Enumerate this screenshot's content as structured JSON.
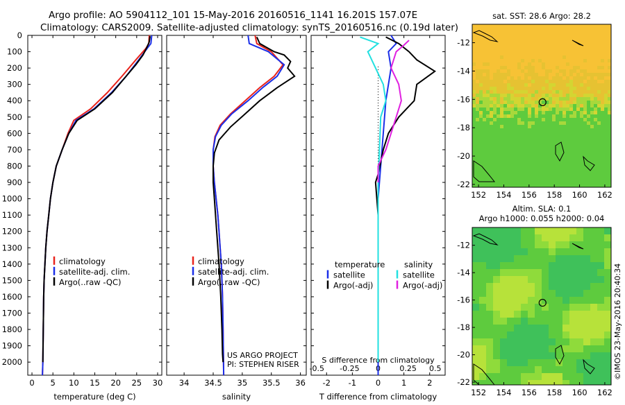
{
  "header": {
    "line1": "Argo profile: AO 5904112_101 15-May-2016 20160516_1141 16.201S 157.07E",
    "line2": "Climatology: CARS2009. Satellite-adjusted climatology: synTS_20160516.nc (0.19d later)"
  },
  "footer_stamp": "©IMOS 23-May-2016 20:40:34",
  "project": {
    "line1": "US ARGO PROJECT",
    "line2": "PI: STEPHEN RISER"
  },
  "colors": {
    "climatology": "#e8231c",
    "satellite": "#1a2ee8",
    "argo": "#000000",
    "sat_s": "#22e0e0",
    "argo_s": "#e020e0"
  },
  "chart_data": [
    {
      "id": "temperature",
      "type": "line",
      "xlabel": "temperature (deg C)",
      "ylabel": "",
      "xlim": [
        -1,
        31
      ],
      "ylim": [
        2080,
        0
      ],
      "xticks": [
        0,
        5,
        10,
        15,
        20,
        25,
        30
      ],
      "yticks": [
        0,
        100,
        200,
        300,
        400,
        500,
        600,
        700,
        800,
        900,
        1000,
        1100,
        1200,
        1300,
        1400,
        1500,
        1600,
        1700,
        1800,
        1900,
        2000
      ],
      "legend": [
        "climatology",
        "satellite-adj. clim.",
        "Argo(..raw -QC)"
      ],
      "series": [
        {
          "name": "climatology",
          "color": "climatology",
          "x": [
            28.0,
            27.9,
            27.2,
            24.8,
            21.5,
            18.0,
            14.0,
            10.0,
            8.6,
            7.2,
            5.8,
            5.0,
            4.4,
            4.0,
            3.6,
            3.3,
            3.1,
            2.9,
            2.8,
            2.7,
            2.6,
            2.5
          ],
          "y": [
            0,
            50,
            80,
            150,
            250,
            350,
            450,
            520,
            600,
            700,
            800,
            900,
            1000,
            1100,
            1200,
            1300,
            1400,
            1500,
            1600,
            1800,
            2000,
            2080
          ]
        },
        {
          "name": "satellite-adj. clim.",
          "color": "satellite",
          "x": [
            28.6,
            28.4,
            27.5,
            25.5,
            22.5,
            19.0,
            14.8,
            10.5,
            8.8,
            7.2,
            5.8,
            5.0,
            4.4,
            4.0,
            3.6,
            3.3,
            3.1,
            2.9,
            2.8,
            2.7,
            2.6,
            2.5
          ],
          "y": [
            0,
            50,
            80,
            150,
            250,
            350,
            450,
            520,
            600,
            700,
            800,
            900,
            1000,
            1100,
            1200,
            1300,
            1400,
            1500,
            1600,
            1800,
            2000,
            2080
          ]
        },
        {
          "name": "Argo(..raw -QC)",
          "color": "argo",
          "x": [
            28.2,
            28.0,
            27.5,
            26.5,
            24.8,
            22.5,
            19.2,
            15.0,
            10.8,
            8.8,
            7.2,
            5.8,
            5.0,
            4.4,
            4.0,
            3.6,
            3.3,
            3.1,
            2.9,
            2.8,
            2.7,
            2.6
          ],
          "y": [
            5,
            40,
            70,
            120,
            180,
            250,
            350,
            450,
            520,
            600,
            700,
            800,
            900,
            1000,
            1100,
            1200,
            1300,
            1400,
            1500,
            1600,
            1800,
            2000
          ]
        }
      ]
    },
    {
      "id": "salinity",
      "type": "line",
      "xlabel": "salinity",
      "ylabel": "",
      "xlim": [
        33.7,
        36.1
      ],
      "ylim": [
        2080,
        0
      ],
      "xticks": [
        34,
        34.5,
        35,
        35.5,
        36
      ],
      "legend": [
        "climatology",
        "satellite-adj. clim.",
        "Argo(..raw -QC)"
      ],
      "series": [
        {
          "name": "climatology",
          "color": "climatology",
          "x": [
            35.22,
            35.25,
            35.5,
            35.7,
            35.55,
            35.3,
            35.05,
            34.8,
            34.62,
            34.53,
            34.5,
            34.5,
            34.52,
            34.55,
            34.58,
            34.6,
            34.62,
            34.64,
            34.65,
            34.66,
            34.67,
            34.68
          ],
          "y": [
            0,
            50,
            100,
            180,
            250,
            320,
            400,
            480,
            550,
            620,
            700,
            800,
            900,
            1000,
            1100,
            1200,
            1300,
            1400,
            1500,
            1600,
            1800,
            2080
          ]
        },
        {
          "name": "satellite-adj. clim.",
          "color": "satellite",
          "x": [
            35.1,
            35.12,
            35.45,
            35.72,
            35.6,
            35.35,
            35.1,
            34.82,
            34.64,
            34.54,
            34.5,
            34.5,
            34.52,
            34.55,
            34.58,
            34.6,
            34.62,
            34.64,
            34.65,
            34.66,
            34.67,
            34.68
          ],
          "y": [
            0,
            50,
            100,
            180,
            250,
            320,
            400,
            480,
            550,
            620,
            700,
            800,
            900,
            1000,
            1100,
            1200,
            1300,
            1400,
            1500,
            1600,
            1800,
            2080
          ]
        },
        {
          "name": "Argo(..raw -QC)",
          "color": "argo",
          "x": [
            35.25,
            35.3,
            35.55,
            35.72,
            35.83,
            35.78,
            35.9,
            35.6,
            35.3,
            35.05,
            34.8,
            34.6,
            34.52,
            34.5,
            34.5,
            34.52,
            34.56,
            34.6,
            34.63,
            34.65,
            34.66,
            34.67
          ],
          "y": [
            10,
            50,
            100,
            120,
            160,
            200,
            250,
            320,
            400,
            480,
            560,
            640,
            720,
            800,
            900,
            1000,
            1200,
            1400,
            1600,
            1800,
            1950,
            2000
          ]
        }
      ]
    },
    {
      "id": "difference",
      "type": "line",
      "xlabel": "T difference from climatology",
      "xlabel2": "S difference from climatology",
      "xlim": [
        -2.6,
        2.6
      ],
      "ylim": [
        2080,
        0
      ],
      "xticks": [
        -2,
        -1,
        0,
        1,
        2
      ],
      "xticks2": [
        "-0.5",
        "-0.25",
        "0",
        "0.25",
        "0.5"
      ],
      "legend_titles": [
        "temperature",
        "salinity"
      ],
      "legend": [
        "satellite",
        "Argo(-adj)",
        "satellite",
        "Argo(-adj)"
      ],
      "series": [
        {
          "name": "satellite",
          "group": "temperature",
          "color": "satellite",
          "x": [
            0.5,
            0.7,
            0.4,
            0.5,
            0.3,
            0.2,
            0.1,
            0.0,
            0.0,
            0.0
          ],
          "y": [
            0,
            50,
            100,
            200,
            400,
            600,
            800,
            1000,
            1500,
            2080
          ]
        },
        {
          "name": "Argo(-adj)",
          "group": "temperature",
          "color": "argo",
          "x": [
            0.3,
            0.8,
            1.2,
            1.5,
            2.2,
            1.5,
            1.4,
            0.8,
            0.4,
            0.2,
            0.0,
            -0.1,
            0.0,
            0.0
          ],
          "y": [
            10,
            50,
            100,
            150,
            220,
            300,
            400,
            500,
            600,
            700,
            850,
            900,
            1100,
            2000
          ]
        },
        {
          "name": "satellite",
          "group": "salinity",
          "color": "sat_s",
          "x": [
            -0.7,
            0.0,
            -0.4,
            -0.1,
            0.2,
            0.3,
            0.1,
            0.05,
            0.0,
            0.0
          ],
          "y": [
            10,
            50,
            100,
            200,
            300,
            400,
            500,
            700,
            900,
            2000
          ]
        },
        {
          "name": "Argo(-adj)",
          "group": "salinity",
          "color": "argo_s",
          "x": [
            1.2,
            1.0,
            0.7,
            0.5,
            0.8,
            0.9,
            0.7,
            0.5,
            0.3,
            0.0,
            0.0
          ],
          "y": [
            30,
            60,
            100,
            200,
            300,
            400,
            500,
            600,
            700,
            800,
            900
          ]
        }
      ]
    },
    {
      "id": "sst-map",
      "type": "heatmap",
      "title": "sat. SST: 28.6 Argo: 28.2",
      "xlim": [
        151.5,
        162.5
      ],
      "ylim": [
        -22.2,
        -10.7
      ],
      "xticks": [
        152,
        154,
        156,
        158,
        160,
        162
      ],
      "yticks": [
        -12,
        -14,
        -16,
        -18,
        -20,
        -22
      ],
      "marker": {
        "lon": 157.07,
        "lat": -16.201
      }
    },
    {
      "id": "sla-map",
      "type": "heatmap",
      "title": "Altim. SLA: 0.1",
      "subtitle": "Argo h1000: 0.055 h2000: 0.04",
      "xlim": [
        151.5,
        162.5
      ],
      "ylim": [
        -22.2,
        -10.7
      ],
      "xticks": [
        152,
        154,
        156,
        158,
        160,
        162
      ],
      "yticks": [
        -12,
        -14,
        -16,
        -18,
        -20,
        -22
      ],
      "marker": {
        "lon": 157.07,
        "lat": -16.201
      }
    }
  ]
}
